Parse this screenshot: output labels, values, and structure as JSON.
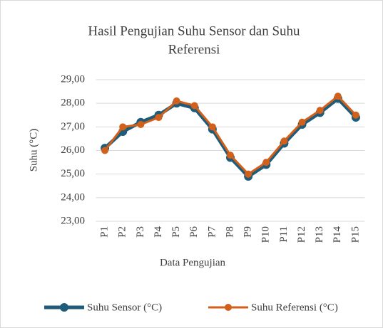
{
  "chart_data": {
    "type": "line",
    "title": [
      "Hasil Pengujian Suhu Sensor dan Suhu",
      "Referensi"
    ],
    "x_label": "Data Pengujian",
    "y_label": "Suhu (°C)",
    "categories": [
      "P1",
      "P2",
      "P3",
      "P4",
      "P5",
      "P6",
      "P7",
      "P8",
      "P9",
      "P10",
      "P11",
      "P12",
      "P13",
      "P14",
      "P15"
    ],
    "series": [
      {
        "name": "Suhu Sensor (°C)",
        "color": "#1f5c7a",
        "values": [
          26.1,
          26.8,
          27.2,
          27.5,
          28.0,
          27.8,
          26.9,
          25.7,
          24.9,
          25.4,
          26.3,
          27.1,
          27.6,
          28.2,
          27.4
        ]
      },
      {
        "name": "Suhu Referensi (°C)",
        "color": "#d2601a",
        "values": [
          26.0,
          27.0,
          27.1,
          27.4,
          28.1,
          27.9,
          27.0,
          25.8,
          25.0,
          25.5,
          26.4,
          27.2,
          27.7,
          28.3,
          27.5
        ]
      }
    ],
    "ylim": [
      23,
      29
    ],
    "yticks": [
      {
        "value": 23,
        "label": "23,00"
      },
      {
        "value": 24,
        "label": "24,00"
      },
      {
        "value": 25,
        "label": "25,00"
      },
      {
        "value": 26,
        "label": "26,00"
      },
      {
        "value": 27,
        "label": "27,00"
      },
      {
        "value": 28,
        "label": "28,00"
      },
      {
        "value": 29,
        "label": "29,00"
      }
    ],
    "grid": true,
    "legend": "bottom"
  }
}
